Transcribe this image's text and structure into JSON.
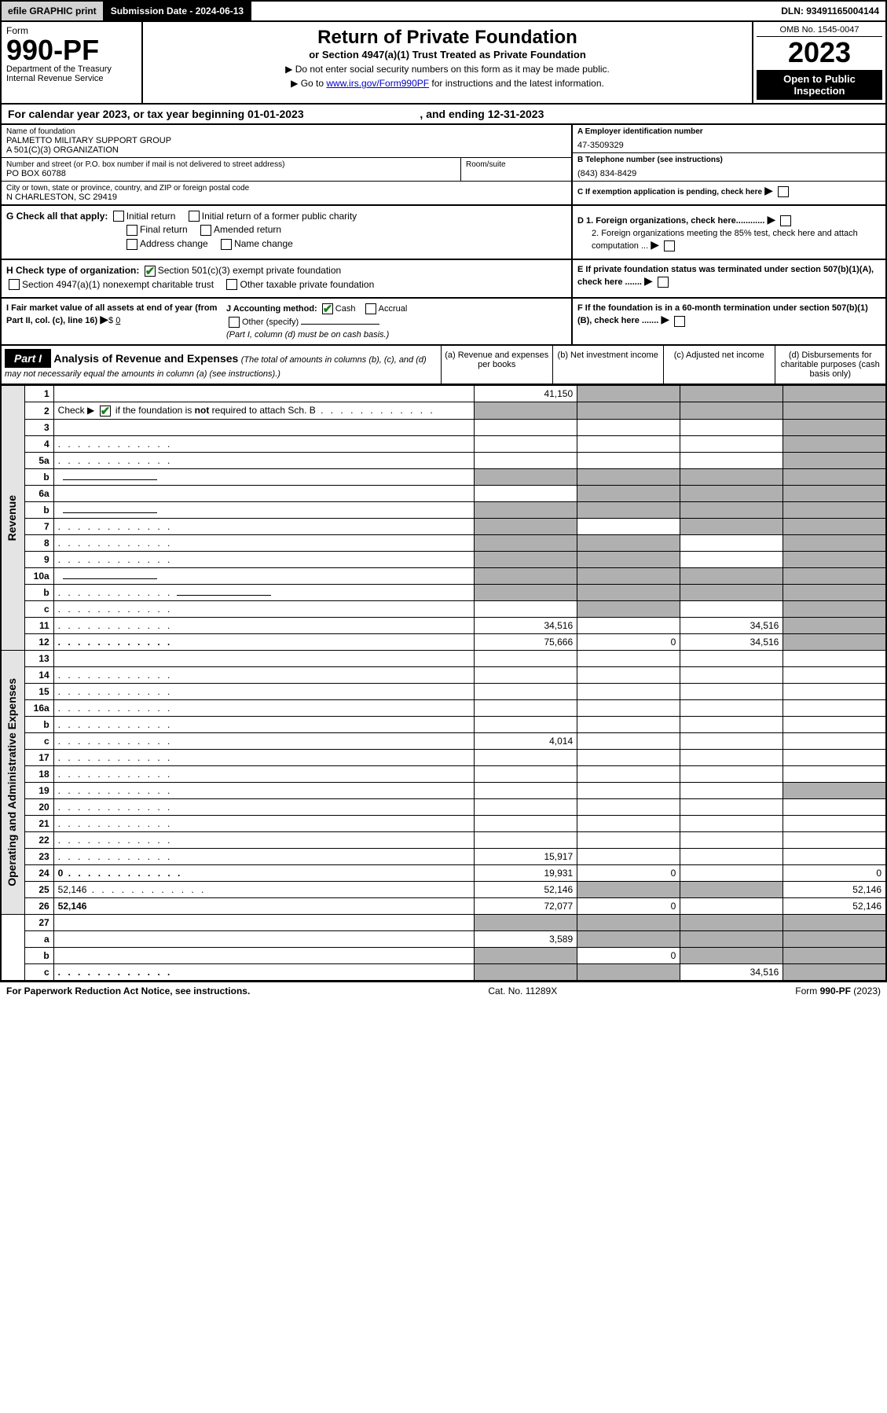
{
  "topbar": {
    "efile": "efile GRAPHIC print",
    "submission": "Submission Date - 2024-06-13",
    "dln": "DLN: 93491165004144"
  },
  "header": {
    "form_label": "Form",
    "form_number": "990-PF",
    "dept1": "Department of the Treasury",
    "dept2": "Internal Revenue Service",
    "title": "Return of Private Foundation",
    "subtitle": "or Section 4947(a)(1) Trust Treated as Private Foundation",
    "note1": "▶ Do not enter social security numbers on this form as it may be made public.",
    "note2_pre": "▶ Go to ",
    "note2_link": "www.irs.gov/Form990PF",
    "note2_post": " for instructions and the latest information.",
    "omb": "OMB No. 1545-0047",
    "taxyear": "2023",
    "inspection": "Open to Public Inspection"
  },
  "calyear": {
    "pre": "For calendar year 2023, or tax year beginning ",
    "begin": "01-01-2023",
    "mid": " , and ending ",
    "end": "12-31-2023"
  },
  "info": {
    "name_lbl": "Name of foundation",
    "name_val1": "PALMETTO MILITARY SUPPORT GROUP",
    "name_val2": "A 501(C)(3) ORGANIZATION",
    "addr_lbl": "Number and street (or P.O. box number if mail is not delivered to street address)",
    "addr_val": "PO BOX 60788",
    "room_lbl": "Room/suite",
    "city_lbl": "City or town, state or province, country, and ZIP or foreign postal code",
    "city_val": "N CHARLESTON, SC  29419",
    "ein_lbl": "A Employer identification number",
    "ein_val": "47-3509329",
    "tel_lbl": "B Telephone number (see instructions)",
    "tel_val": "(843) 834-8429",
    "c_lbl": "C If exemption application is pending, check here",
    "d1": "D 1. Foreign organizations, check here............",
    "d2": "2. Foreign organizations meeting the 85% test, check here and attach computation ...",
    "e_lbl": "E  If private foundation status was terminated under section 507(b)(1)(A), check here .......",
    "f_lbl": "F  If the foundation is in a 60-month termination under section 507(b)(1)(B), check here .......",
    "g_lbl": "G Check all that apply:",
    "g_items": [
      "Initial return",
      "Initial return of a former public charity",
      "Final return",
      "Amended return",
      "Address change",
      "Name change"
    ],
    "h_lbl": "H Check type of organization:",
    "h1": "Section 501(c)(3) exempt private foundation",
    "h2": "Section 4947(a)(1) nonexempt charitable trust",
    "h3": "Other taxable private foundation",
    "i_lbl": "I Fair market value of all assets at end of year (from Part II, col. (c), line 16)",
    "i_val": "0",
    "j_lbl": "J Accounting method:",
    "j1": "Cash",
    "j2": "Accrual",
    "j3": "Other (specify)",
    "j_note": "(Part I, column (d) must be on cash basis.)"
  },
  "part1": {
    "label": "Part I",
    "title": "Analysis of Revenue and Expenses",
    "title_note": "(The total of amounts in columns (b), (c), and (d) may not necessarily equal the amounts in column (a) (see instructions).)",
    "col_a": "(a)    Revenue and expenses per books",
    "col_b": "(b)    Net investment income",
    "col_c": "(c)    Adjusted net income",
    "col_d": "(d)    Disbursements for charitable purposes (cash basis only)"
  },
  "sidebar": {
    "revenue": "Revenue",
    "expenses": "Operating and Administrative Expenses"
  },
  "rows": [
    {
      "n": "1",
      "d": "",
      "a": "41,150",
      "b": "",
      "c": "",
      "shaded": [
        "b",
        "c",
        "d"
      ]
    },
    {
      "n": "2",
      "d": "",
      "dots": true,
      "a": "",
      "b": "",
      "c": "",
      "shaded": [
        "a",
        "b",
        "c",
        "d"
      ],
      "checkmark": true
    },
    {
      "n": "3",
      "d": "",
      "a": "",
      "b": "",
      "c": "",
      "shaded": [
        "d"
      ]
    },
    {
      "n": "4",
      "d": "",
      "dots": true,
      "a": "",
      "b": "",
      "c": "",
      "shaded": [
        "d"
      ]
    },
    {
      "n": "5a",
      "d": "",
      "dots": true,
      "a": "",
      "b": "",
      "c": "",
      "shaded": [
        "d"
      ]
    },
    {
      "n": "b",
      "d": "",
      "inline": true,
      "a": "",
      "b": "",
      "c": "",
      "shaded": [
        "a",
        "b",
        "c",
        "d"
      ]
    },
    {
      "n": "6a",
      "d": "",
      "a": "",
      "b": "",
      "c": "",
      "shaded": [
        "b",
        "c",
        "d"
      ]
    },
    {
      "n": "b",
      "d": "",
      "inline": true,
      "a": "",
      "b": "",
      "c": "",
      "shaded": [
        "a",
        "b",
        "c",
        "d"
      ]
    },
    {
      "n": "7",
      "d": "",
      "dots": true,
      "a": "",
      "b": "",
      "c": "",
      "shaded": [
        "a",
        "c",
        "d"
      ]
    },
    {
      "n": "8",
      "d": "",
      "dots": true,
      "a": "",
      "b": "",
      "c": "",
      "shaded": [
        "a",
        "b",
        "d"
      ]
    },
    {
      "n": "9",
      "d": "",
      "dots": true,
      "a": "",
      "b": "",
      "c": "",
      "shaded": [
        "a",
        "b",
        "d"
      ]
    },
    {
      "n": "10a",
      "d": "",
      "inline": true,
      "a": "",
      "b": "",
      "c": "",
      "shaded": [
        "a",
        "b",
        "c",
        "d"
      ]
    },
    {
      "n": "b",
      "d": "",
      "dots": true,
      "inline": true,
      "a": "",
      "b": "",
      "c": "",
      "shaded": [
        "a",
        "b",
        "c",
        "d"
      ]
    },
    {
      "n": "c",
      "d": "",
      "dots": true,
      "a": "",
      "b": "",
      "c": "",
      "shaded": [
        "b",
        "d"
      ]
    },
    {
      "n": "11",
      "d": "",
      "dots": true,
      "a": "34,516",
      "b": "",
      "c": "34,516",
      "shaded": [
        "d"
      ]
    },
    {
      "n": "12",
      "d": "",
      "dots": true,
      "bold": true,
      "a": "75,666",
      "b": "0",
      "c": "34,516",
      "shaded": [
        "d"
      ]
    },
    {
      "n": "13",
      "d": "",
      "a": "",
      "b": "",
      "c": ""
    },
    {
      "n": "14",
      "d": "",
      "dots": true,
      "a": "",
      "b": "",
      "c": ""
    },
    {
      "n": "15",
      "d": "",
      "dots": true,
      "a": "",
      "b": "",
      "c": ""
    },
    {
      "n": "16a",
      "d": "",
      "dots": true,
      "a": "",
      "b": "",
      "c": ""
    },
    {
      "n": "b",
      "d": "",
      "dots": true,
      "a": "",
      "b": "",
      "c": ""
    },
    {
      "n": "c",
      "d": "",
      "dots": true,
      "a": "4,014",
      "b": "",
      "c": ""
    },
    {
      "n": "17",
      "d": "",
      "dots": true,
      "a": "",
      "b": "",
      "c": ""
    },
    {
      "n": "18",
      "d": "",
      "dots": true,
      "a": "",
      "b": "",
      "c": ""
    },
    {
      "n": "19",
      "d": "",
      "dots": true,
      "a": "",
      "b": "",
      "c": "",
      "shaded": [
        "d"
      ]
    },
    {
      "n": "20",
      "d": "",
      "dots": true,
      "a": "",
      "b": "",
      "c": ""
    },
    {
      "n": "21",
      "d": "",
      "dots": true,
      "a": "",
      "b": "",
      "c": ""
    },
    {
      "n": "22",
      "d": "",
      "dots": true,
      "a": "",
      "b": "",
      "c": ""
    },
    {
      "n": "23",
      "d": "",
      "dots": true,
      "a": "15,917",
      "b": "",
      "c": ""
    },
    {
      "n": "24",
      "d": "0",
      "dots": true,
      "bold": true,
      "a": "19,931",
      "b": "0",
      "c": ""
    },
    {
      "n": "25",
      "d": "52,146",
      "dots": true,
      "a": "52,146",
      "b": "",
      "c": "",
      "shaded": [
        "b",
        "c"
      ]
    },
    {
      "n": "26",
      "d": "52,146",
      "bold": true,
      "a": "72,077",
      "b": "0",
      "c": ""
    },
    {
      "n": "27",
      "d": "",
      "a": "",
      "b": "",
      "c": "",
      "shaded": [
        "a",
        "b",
        "c",
        "d"
      ]
    },
    {
      "n": "a",
      "d": "",
      "bold": true,
      "a": "3,589",
      "b": "",
      "c": "",
      "shaded": [
        "b",
        "c",
        "d"
      ]
    },
    {
      "n": "b",
      "d": "",
      "bold": true,
      "a": "",
      "b": "0",
      "c": "",
      "shaded": [
        "a",
        "c",
        "d"
      ]
    },
    {
      "n": "c",
      "d": "",
      "dots": true,
      "bold": true,
      "a": "",
      "b": "",
      "c": "34,516",
      "shaded": [
        "a",
        "b",
        "d"
      ]
    }
  ],
  "footer": {
    "left": "For Paperwork Reduction Act Notice, see instructions.",
    "mid": "Cat. No. 11289X",
    "right": "Form 990-PF (2023)"
  },
  "colors": {
    "shaded": "#b0b0b0",
    "sidebar": "#e4e4e4",
    "black": "#000000",
    "check_green": "#1a7f1a",
    "link": "#0000cc"
  }
}
